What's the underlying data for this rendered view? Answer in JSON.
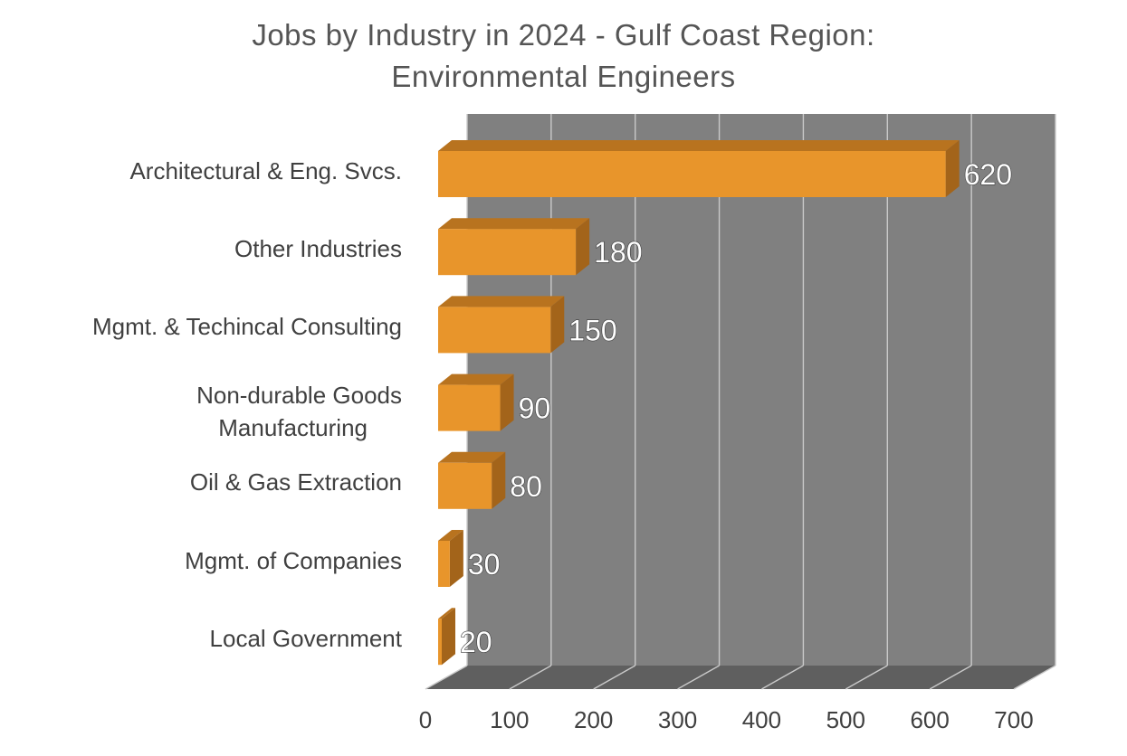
{
  "chart_data": {
    "type": "bar",
    "orientation": "horizontal",
    "three_d": true,
    "title_lines": [
      "Jobs by Industry in 2024 - Gulf Coast Region:",
      "Environmental Engineers"
    ],
    "categories": [
      "Architectural & Eng. Svcs.",
      "Other Industries",
      "Mgmt. & Techincal Consulting",
      "Non-durable Goods Manufacturing",
      "Oil & Gas Extraction",
      "Mgmt. of Companies",
      "Local Government"
    ],
    "category_label_lines": [
      [
        "Architectural & Eng. Svcs."
      ],
      [
        "Other Industries"
      ],
      [
        "Mgmt. & Techincal Consulting"
      ],
      [
        "Non-durable Goods",
        "Manufacturing"
      ],
      [
        "Oil & Gas Extraction"
      ],
      [
        "Mgmt. of Companies"
      ],
      [
        "Local Government"
      ]
    ],
    "values": [
      620,
      180,
      150,
      90,
      80,
      30,
      20
    ],
    "data_labels": [
      "620",
      "180",
      "150",
      "90",
      "80",
      "30",
      "20"
    ],
    "xlim": [
      0,
      700
    ],
    "x_ticks": [
      "0",
      "100",
      "200",
      "300",
      "400",
      "500",
      "600",
      "700"
    ],
    "xlabel": "",
    "ylabel": "",
    "grid": "vertical",
    "legend": "none",
    "colors": {
      "bar_front": "#E8952B",
      "bar_top": "#B8731F",
      "bar_side": "#A3641A",
      "back_wall": "#808080",
      "floor": "#5F5F5F",
      "gridline": "#C9C9C9",
      "title": "#555555",
      "axis_text": "#404040"
    }
  }
}
